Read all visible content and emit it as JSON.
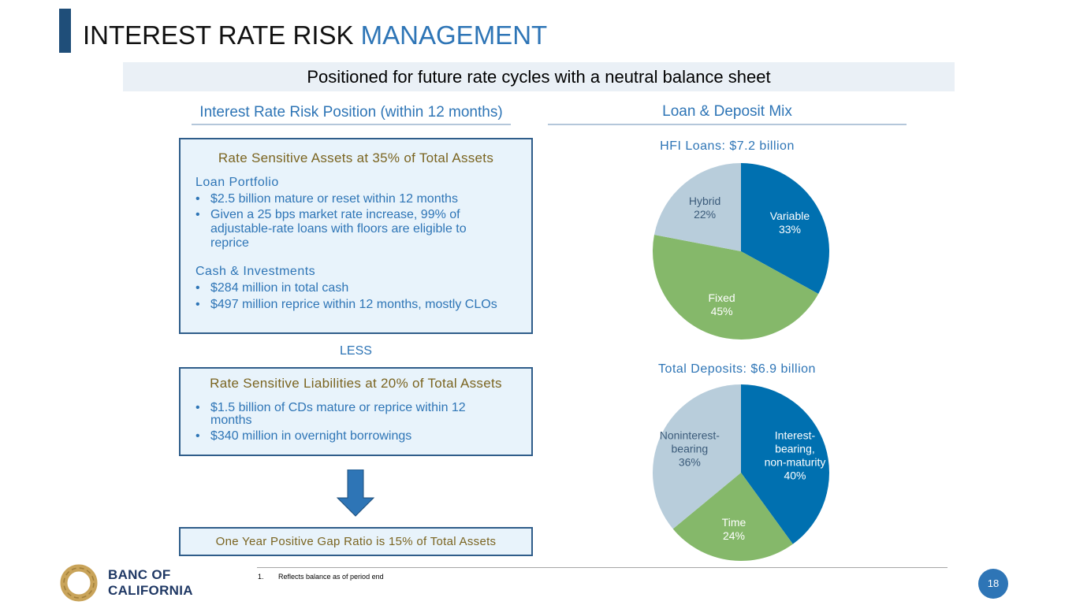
{
  "header": {
    "title_part1": "INTEREST RATE RISK ",
    "title_part2": "MANAGEMENT",
    "banner": "Positioned for future rate cycles with a neutral balance sheet"
  },
  "left": {
    "heading": "Interest Rate Risk Position (within 12 months)",
    "assets_box": {
      "title": "Rate Sensitive Assets at 35% of Total Assets",
      "loan_heading": "Loan Portfolio",
      "loan_bullets": [
        "$2.5 billion mature or reset within 12 months",
        "Given a 25 bps market rate increase, 99% of adjustable-rate loans with floors are eligible to reprice"
      ],
      "cash_heading": "Cash & Investments",
      "cash_bullets": [
        "$284 million in total cash",
        "$497 million reprice within 12 months, mostly CLOs"
      ]
    },
    "less_label": "LESS",
    "liabilities_box": {
      "title": "Rate Sensitive Liabilities at 20% of Total Assets",
      "bullets": [
        "$1.5 billion of CDs mature or reprice within 12 months",
        "$340 million in overnight borrowings"
      ]
    },
    "gap_box": "One Year Positive Gap Ratio is 15% of Total Assets"
  },
  "right": {
    "heading": "Loan & Deposit Mix"
  },
  "chart_data": [
    {
      "type": "pie",
      "title": "HFI Loans: $7.2 billion",
      "slices": [
        {
          "label": "Variable",
          "value": 33,
          "display": "33%",
          "color": "#0070b0",
          "text_color": "#ffffff"
        },
        {
          "label": "Fixed",
          "value": 45,
          "display": "45%",
          "color": "#85b86a",
          "text_color": "#ffffff"
        },
        {
          "label": "Hybrid",
          "value": 22,
          "display": "22%",
          "color": "#b8cddb",
          "text_color": "#3b5b7a"
        }
      ]
    },
    {
      "type": "pie",
      "title": "Total Deposits: $6.9 billion",
      "slices": [
        {
          "label": "Interest-bearing, non-maturity",
          "label_lines": [
            "Interest-",
            "bearing,",
            "non-maturity"
          ],
          "value": 40,
          "display": "40%",
          "color": "#0070b0",
          "text_color": "#ffffff"
        },
        {
          "label": "Time",
          "value": 24,
          "display": "24%",
          "color": "#85b86a",
          "text_color": "#ffffff"
        },
        {
          "label": "Noninterest-bearing",
          "label_lines": [
            "Noninterest-",
            "bearing"
          ],
          "value": 36,
          "display": "36%",
          "color": "#b8cddb",
          "text_color": "#3b5b7a"
        }
      ]
    }
  ],
  "footer": {
    "footnote_num": "1.",
    "footnote_text": "Reflects balance as of period end",
    "page_number": "18",
    "logo_line1": "BANC OF",
    "logo_line2": "CALIFORNIA"
  },
  "colors": {
    "accent": "#2e75b6",
    "navy": "#1f4e79",
    "box_title": "#7a6420"
  }
}
